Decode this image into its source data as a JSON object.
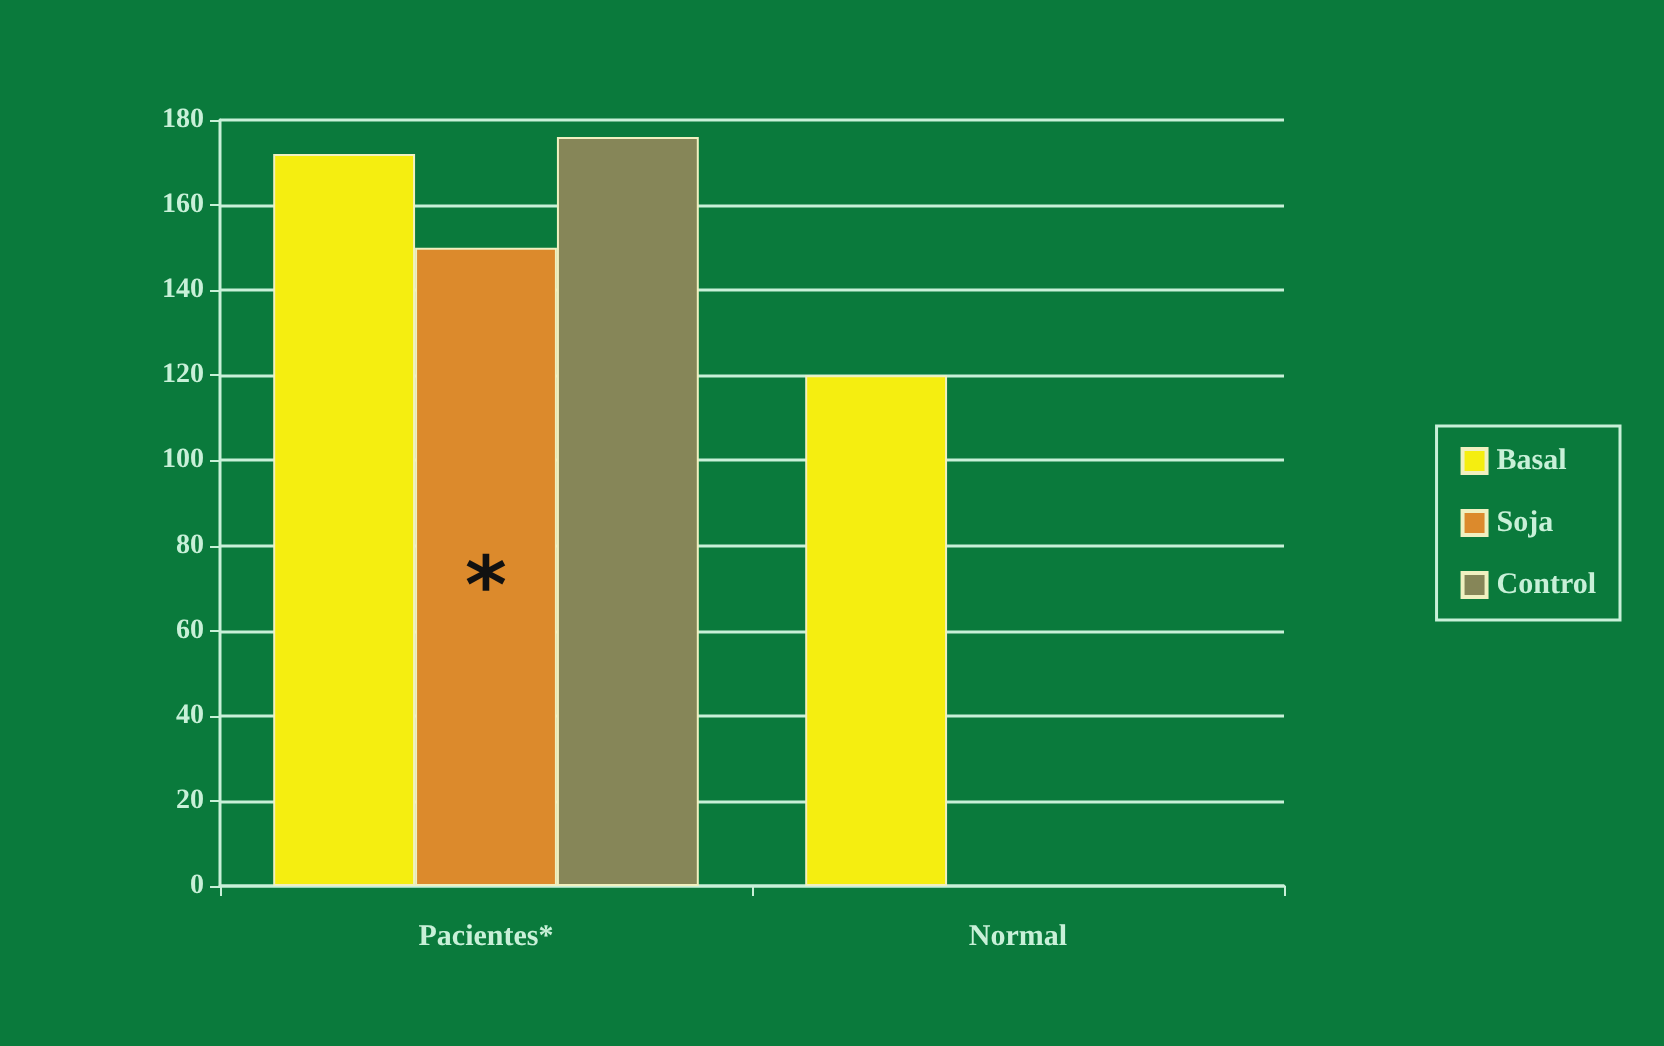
{
  "chart_data": {
    "type": "bar",
    "categories": [
      "Pacientes*",
      "Normal"
    ],
    "series": [
      {
        "name": "Basal",
        "color": "#f5ee10",
        "values": [
          172,
          120
        ]
      },
      {
        "name": "Soja",
        "color": "#dc8a2c",
        "values": [
          150,
          null
        ]
      },
      {
        "name": "Control",
        "color": "#868658",
        "values": [
          176,
          null
        ]
      }
    ],
    "ylim": [
      0,
      180
    ],
    "yticks": [
      0,
      20,
      40,
      60,
      80,
      100,
      120,
      140,
      160,
      180
    ],
    "grid": true,
    "legend": "right",
    "annotations": [
      "*"
    ]
  }
}
